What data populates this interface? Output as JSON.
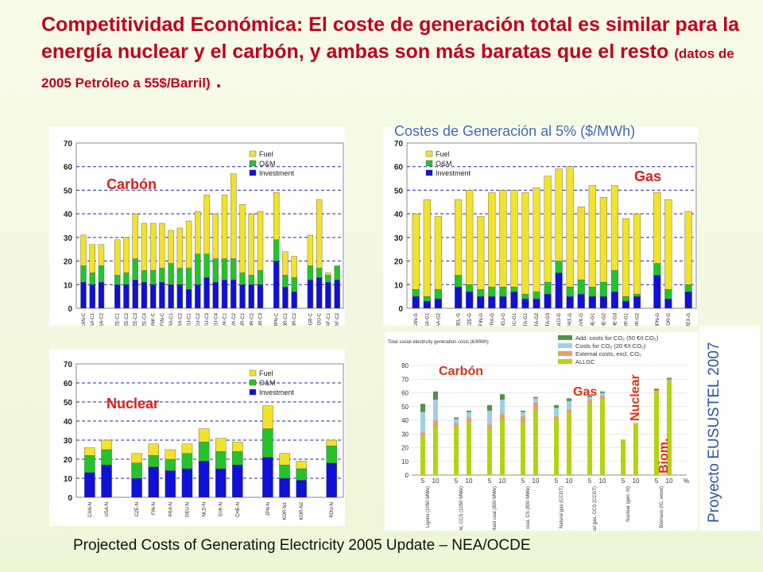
{
  "slide": {
    "title_main": "Competitividad Económica: El coste de generación total es similar para la energía nuclear y el carbón, y ambas son más baratas que el resto",
    "title_sub": "(datos de 2005 Petróleo a 55$/Barril)",
    "title_end": ".",
    "cost_title": "Costes de Generación al 5% ($/MWh)",
    "footer": "Projected Costs of Generating Electricity 2005 Update – NEA/OCDE",
    "project": "Proyecto EUSUSTEL 2007"
  },
  "colors": {
    "fuel": "#f2e22a",
    "om": "#22c42a",
    "inv": "#1010d8",
    "title": "#c0001e"
  },
  "chart_data": [
    {
      "id": "carbon",
      "type": "bar",
      "stacked": true,
      "label": "Carbón",
      "ylim": [
        0,
        70
      ],
      "yticks": [
        0,
        10,
        20,
        30,
        40,
        50,
        60,
        70
      ],
      "legend": [
        "Fuel",
        "O&M",
        "Investment"
      ],
      "categories": [
        "CAN-C",
        "USA-C1",
        "USA-C2",
        "CZE-C1",
        "CZE-C2",
        "CZE-C3",
        "CZE-C4",
        "DNK-C",
        "FIN-C",
        "FRA-C1",
        "FRA-C2",
        "DEU-C1",
        "DEU-C2",
        "DEU-C3",
        "DEU-C4",
        "SVK-C1",
        "SVK-C2",
        "TUR-C1",
        "TUR-C2",
        "TUR-C3",
        "JPN-C",
        "KOR-C1",
        "KOR-C2",
        "BGR-C",
        "ROU-C",
        "ZAF-C1",
        "ZAF-C2"
      ],
      "gaps_after": [
        2,
        19,
        22
      ],
      "series": [
        {
          "name": "Investment",
          "values": [
            11,
            10,
            11,
            10,
            10,
            12,
            11,
            10,
            11,
            10,
            10,
            8,
            10,
            13,
            11,
            12,
            12,
            10,
            10,
            10,
            20,
            9,
            7,
            12,
            13,
            11,
            12
          ]
        },
        {
          "name": "O&M",
          "values": [
            7,
            5,
            7,
            4,
            5,
            9,
            5,
            6,
            6,
            9,
            7,
            9,
            13,
            10,
            10,
            9,
            9,
            5,
            4,
            6,
            9,
            5,
            6,
            6,
            4,
            3,
            6
          ]
        },
        {
          "name": "Fuel",
          "values": [
            13,
            12,
            9,
            15,
            15,
            19,
            20,
            20,
            19,
            14,
            17,
            20,
            18,
            25,
            19,
            27,
            36,
            29,
            26,
            25,
            20,
            10,
            9,
            13,
            29,
            1,
            0
          ]
        }
      ]
    },
    {
      "id": "gas",
      "type": "bar",
      "stacked": true,
      "label": "Gas",
      "ylim": [
        0,
        70
      ],
      "yticks": [
        0,
        10,
        20,
        30,
        40,
        50,
        60,
        70
      ],
      "legend": [
        "Fuel",
        "O&M",
        "Investment"
      ],
      "categories": [
        "CAN-G",
        "USA-G1",
        "USA-G2",
        "BEL-G",
        "CZE-G",
        "FIN-G",
        "FRA-G",
        "DEU-G",
        "GRC-G1",
        "ITA-G1",
        "ITA-G2",
        "ITA-G3",
        "NLD-G",
        "PRT-G",
        "SVK-G",
        "CHE-G1",
        "CHE-G2",
        "CHE-G3",
        "TUR-G1",
        "TUR-G2",
        "JPN-G",
        "KOR-G",
        "MEX-G"
      ],
      "gaps_after": [
        2,
        19,
        21
      ],
      "series": [
        {
          "name": "Investment",
          "values": [
            5,
            3,
            4,
            9,
            7,
            5,
            5,
            5,
            7,
            4,
            4,
            6,
            15,
            5,
            6,
            5,
            5,
            7,
            3,
            5,
            14,
            4,
            7
          ]
        },
        {
          "name": "O&M",
          "values": [
            3,
            2,
            4,
            5,
            3,
            3,
            4,
            4,
            2,
            2,
            3,
            5,
            5,
            4,
            6,
            4,
            6,
            9,
            2,
            1,
            5,
            4,
            3
          ]
        },
        {
          "name": "Fuel",
          "values": [
            32,
            41,
            31,
            32,
            40,
            31,
            40,
            41,
            41,
            43,
            44,
            45,
            39,
            51,
            31,
            43,
            36,
            36,
            33,
            34,
            30,
            38,
            31
          ]
        }
      ]
    },
    {
      "id": "nuclear",
      "type": "bar",
      "stacked": true,
      "label": "Nuclear",
      "ylim": [
        0,
        70
      ],
      "yticks": [
        0,
        10,
        20,
        30,
        40,
        50,
        60,
        70
      ],
      "legend": [
        "Fuel",
        "O&M",
        "Investment"
      ],
      "categories": [
        "CAN-N",
        "USA-N",
        "CZE-N",
        "FIN-N",
        "FRA-N",
        "DEU-N",
        "NLD-N",
        "SVK-N",
        "CHE-N",
        "JPN-N",
        "KOR-N1",
        "KOR-N2",
        "ROU-N"
      ],
      "gaps_after": [
        1,
        8,
        11
      ],
      "series": [
        {
          "name": "Investment",
          "values": [
            13,
            17,
            10,
            16,
            14,
            15,
            19,
            15,
            17,
            21,
            10,
            9,
            18
          ]
        },
        {
          "name": "O&M",
          "values": [
            9,
            8,
            8,
            6,
            6,
            8,
            10,
            9,
            7,
            15,
            7,
            6,
            9
          ]
        },
        {
          "name": "Fuel",
          "values": [
            4,
            5,
            5,
            6,
            5,
            5,
            7,
            7,
            5,
            12,
            6,
            4,
            3
          ]
        }
      ]
    },
    {
      "id": "eusustel",
      "type": "bar",
      "stacked": true,
      "ylabel": "Total social electricity generation costs (€/MWh)",
      "ylim": [
        0,
        80
      ],
      "yticks": [
        0,
        10,
        20,
        30,
        40,
        50,
        60,
        70,
        80
      ],
      "unit": "%",
      "legend": [
        "Add. costs for CO₂ (50 €/t CO₂)",
        "Costs for CO₂ (20 €/t CO₂)",
        "External costs, excl. CO₂",
        "ALLGC"
      ],
      "group_labels": [
        "Carbón",
        "Gas",
        "Nuclear",
        "Biom."
      ],
      "categories": [
        "Lignite (1050 MWe)",
        "Lignite, CCS (1050 MWe)",
        "Hard coal (800 MWe)",
        "Hard coal, CS (800 MWe)",
        "Natural gas (CCGT)",
        "Natural gas, CCS (CCGT)",
        "Nuclear (gen. III)",
        "Biomass (IG, wood)"
      ],
      "x_rates": [
        "5",
        "10"
      ],
      "series": [
        {
          "name": "ALLGC",
          "values": [
            [
              28,
              35
            ],
            [
              35,
              38
            ],
            [
              33,
              40
            ],
            [
              38,
              47
            ],
            [
              40,
              45
            ],
            [
              52,
              55
            ],
            [
              26,
              38
            ],
            [
              60,
              68
            ]
          ]
        },
        {
          "name": "External costs, excl. CO₂",
          "values": [
            [
              3,
              5
            ],
            [
              3,
              4
            ],
            [
              4,
              5
            ],
            [
              5,
              6
            ],
            [
              3,
              3
            ],
            [
              3,
              3
            ],
            [
              0,
              0
            ],
            [
              2,
              2
            ]
          ]
        },
        {
          "name": "Costs for CO₂ (20 €/t CO₂)",
          "values": [
            [
              15,
              15
            ],
            [
              3,
              4
            ],
            [
              10,
              10
            ],
            [
              3,
              3
            ],
            [
              6,
              6
            ],
            [
              2,
              2
            ],
            [
              0,
              0
            ],
            [
              0,
              0
            ]
          ]
        },
        {
          "name": "Add. costs for CO₂ (50 €/t CO₂)",
          "values": [
            [
              6,
              6
            ],
            [
              1,
              1
            ],
            [
              4,
              4
            ],
            [
              1,
              1
            ],
            [
              2,
              2
            ],
            [
              1,
              1
            ],
            [
              0,
              0
            ],
            [
              1,
              1
            ]
          ]
        }
      ]
    }
  ]
}
